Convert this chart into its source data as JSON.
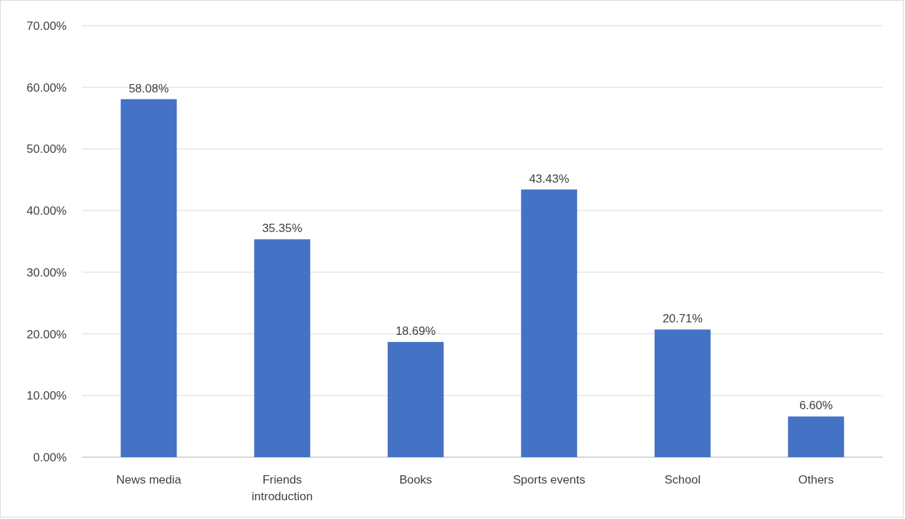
{
  "chart_data": {
    "type": "bar",
    "categories": [
      "News media",
      "Friends introduction",
      "Books",
      "Sports events",
      "School",
      "Others"
    ],
    "values": [
      58.08,
      35.35,
      18.69,
      43.43,
      20.71,
      6.6
    ],
    "color": "#4472c4",
    "value_labels": [
      "58.08%",
      "35.35%",
      "18.69%",
      "43.43%",
      "20.71%",
      "6.60%"
    ],
    "ylim": [
      0,
      70
    ],
    "yticks": [
      {
        "value": 0,
        "label": "0.00%"
      },
      {
        "value": 10,
        "label": "10.00%"
      },
      {
        "value": 20,
        "label": "20.00%"
      },
      {
        "value": 30,
        "label": "30.00%"
      },
      {
        "value": 40,
        "label": "40.00%"
      },
      {
        "value": 50,
        "label": "50.00%"
      },
      {
        "value": 60,
        "label": "60.00%"
      },
      {
        "value": 70,
        "label": "70.00%"
      }
    ],
    "grid": "y"
  }
}
